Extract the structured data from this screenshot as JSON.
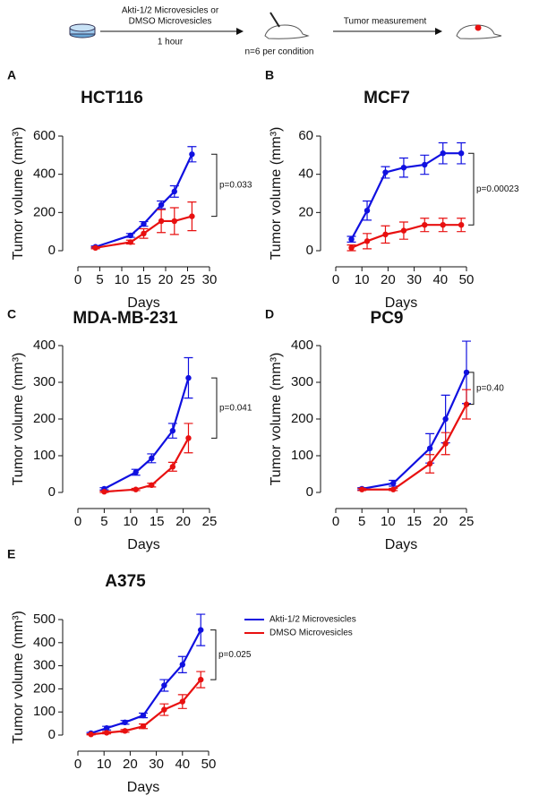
{
  "schematic": {
    "treatment": "Akti-1/2 Microvesicles or",
    "treatment_2": "DMSO Microvesicles",
    "duration": "1 hour",
    "n": "n=6 per condition",
    "step": "Tumor measurement"
  },
  "chart_data": [
    {
      "type": "line",
      "panel": "A",
      "title": "HCT116",
      "x_label": "Days",
      "y_label": "Tumor volume (mm³)",
      "x": [
        4,
        12,
        15,
        19,
        22,
        26
      ],
      "xlim": [
        0,
        30
      ],
      "xticks": [
        0,
        5,
        10,
        15,
        20,
        25,
        30
      ],
      "ylim": [
        0,
        600
      ],
      "yticks": [
        0,
        200,
        400,
        600
      ],
      "annotation": "p=0.033",
      "series": [
        {
          "color": "#1010e0",
          "values": [
            20,
            80,
            140,
            240,
            310,
            505
          ],
          "errors": [
            5,
            10,
            12,
            20,
            30,
            40
          ]
        },
        {
          "color": "#e81010",
          "values": [
            15,
            45,
            90,
            155,
            155,
            180
          ],
          "errors": [
            5,
            10,
            25,
            60,
            70,
            75
          ]
        }
      ]
    },
    {
      "type": "line",
      "panel": "B",
      "title": "MCF7",
      "x_label": "Days",
      "y_label": "Tumor volume (mm³)",
      "x": [
        6,
        12,
        19,
        26,
        34,
        41,
        48
      ],
      "xlim": [
        0,
        50
      ],
      "xticks": [
        0,
        10,
        20,
        30,
        40,
        50
      ],
      "ylim": [
        0,
        60
      ],
      "yticks": [
        0,
        20,
        40,
        60
      ],
      "annotation": "p=0.00023",
      "series": [
        {
          "color": "#1010e0",
          "values": [
            6,
            21,
            41,
            43.5,
            45,
            51,
            51
          ],
          "errors": [
            1.5,
            5,
            3,
            5,
            5,
            5.5,
            5.5
          ]
        },
        {
          "color": "#e81010",
          "values": [
            1.5,
            5,
            8.5,
            10.5,
            13.5,
            13.5,
            13.5
          ],
          "errors": [
            1.5,
            4,
            4.5,
            4.5,
            3.5,
            3.5,
            3.5
          ]
        }
      ]
    },
    {
      "type": "line",
      "panel": "C",
      "title": "MDA-MB-231",
      "x_label": "Days",
      "y_label": "Tumor volume (mm³)",
      "x": [
        5,
        11,
        14,
        18,
        21
      ],
      "xlim": [
        0,
        25
      ],
      "xticks": [
        0,
        5,
        10,
        15,
        20,
        25
      ],
      "ylim": [
        0,
        400
      ],
      "yticks": [
        0,
        100,
        200,
        300,
        400
      ],
      "annotation": "p=0.041",
      "series": [
        {
          "color": "#1010e0",
          "values": [
            10,
            55,
            93,
            168,
            312
          ],
          "errors": [
            3,
            8,
            12,
            20,
            55
          ]
        },
        {
          "color": "#e81010",
          "values": [
            2,
            8,
            20,
            70,
            148
          ],
          "errors": [
            2,
            3,
            5,
            12,
            40
          ]
        }
      ]
    },
    {
      "type": "line",
      "panel": "D",
      "title": "PC9",
      "x_label": "Days",
      "y_label": "Tumor volume (mm³)",
      "x": [
        5,
        11,
        18,
        21,
        25
      ],
      "xlim": [
        0,
        25
      ],
      "xticks": [
        0,
        5,
        10,
        15,
        20,
        25
      ],
      "ylim": [
        0,
        400
      ],
      "yticks": [
        0,
        100,
        200,
        300,
        400
      ],
      "annotation": "p=0.40",
      "series": [
        {
          "color": "#1010e0",
          "values": [
            10,
            25,
            120,
            200,
            327
          ],
          "errors": [
            3,
            8,
            40,
            65,
            85
          ]
        },
        {
          "color": "#e81010",
          "values": [
            8,
            8,
            78,
            133,
            240
          ],
          "errors": [
            3,
            3,
            25,
            30,
            40
          ]
        }
      ]
    },
    {
      "type": "line",
      "panel": "E",
      "title": "A375",
      "x_label": "Days",
      "y_label": "Tumor volume (mm³)",
      "x": [
        5,
        11,
        18,
        25,
        33,
        40,
        47
      ],
      "xlim": [
        0,
        50
      ],
      "xticks": [
        0,
        10,
        20,
        30,
        40,
        50
      ],
      "ylim": [
        0,
        500
      ],
      "yticks": [
        0,
        100,
        200,
        300,
        400,
        500
      ],
      "annotation": "p=0.025",
      "series": [
        {
          "name": "Akti-1/2 Microvesicles",
          "color": "#1010e0",
          "values": [
            8,
            30,
            55,
            85,
            215,
            305,
            455
          ],
          "errors": [
            3,
            8,
            8,
            10,
            25,
            35,
            68
          ]
        },
        {
          "name": "DMSO Microvesicles",
          "color": "#e81010",
          "values": [
            3,
            10,
            18,
            38,
            110,
            145,
            240
          ],
          "errors": [
            2,
            5,
            6,
            10,
            25,
            30,
            35
          ]
        }
      ]
    }
  ]
}
